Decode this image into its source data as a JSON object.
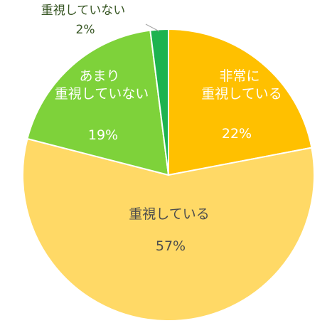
{
  "chart_data": {
    "type": "pie",
    "title": "",
    "start_angle_deg": 0,
    "direction": "clockwise",
    "slices": [
      {
        "label_lines": [
          "非常に",
          "重視している"
        ],
        "value": 22,
        "value_label": "22%",
        "color": "#FFC000",
        "text_color": "#ffffff"
      },
      {
        "label_lines": [
          "重視している"
        ],
        "value": 57,
        "value_label": "57%",
        "color": "#FFD966",
        "text_color": "#4d4d4d"
      },
      {
        "label_lines": [
          "あまり",
          "重視していない"
        ],
        "value": 19,
        "value_label": "19%",
        "color": "#7ED23A",
        "text_color": "#ffffff"
      },
      {
        "label_lines": [
          "重視していない"
        ],
        "value": 2,
        "value_label": "2%",
        "color": "#1DB34F",
        "text_color": "#375623"
      }
    ]
  }
}
